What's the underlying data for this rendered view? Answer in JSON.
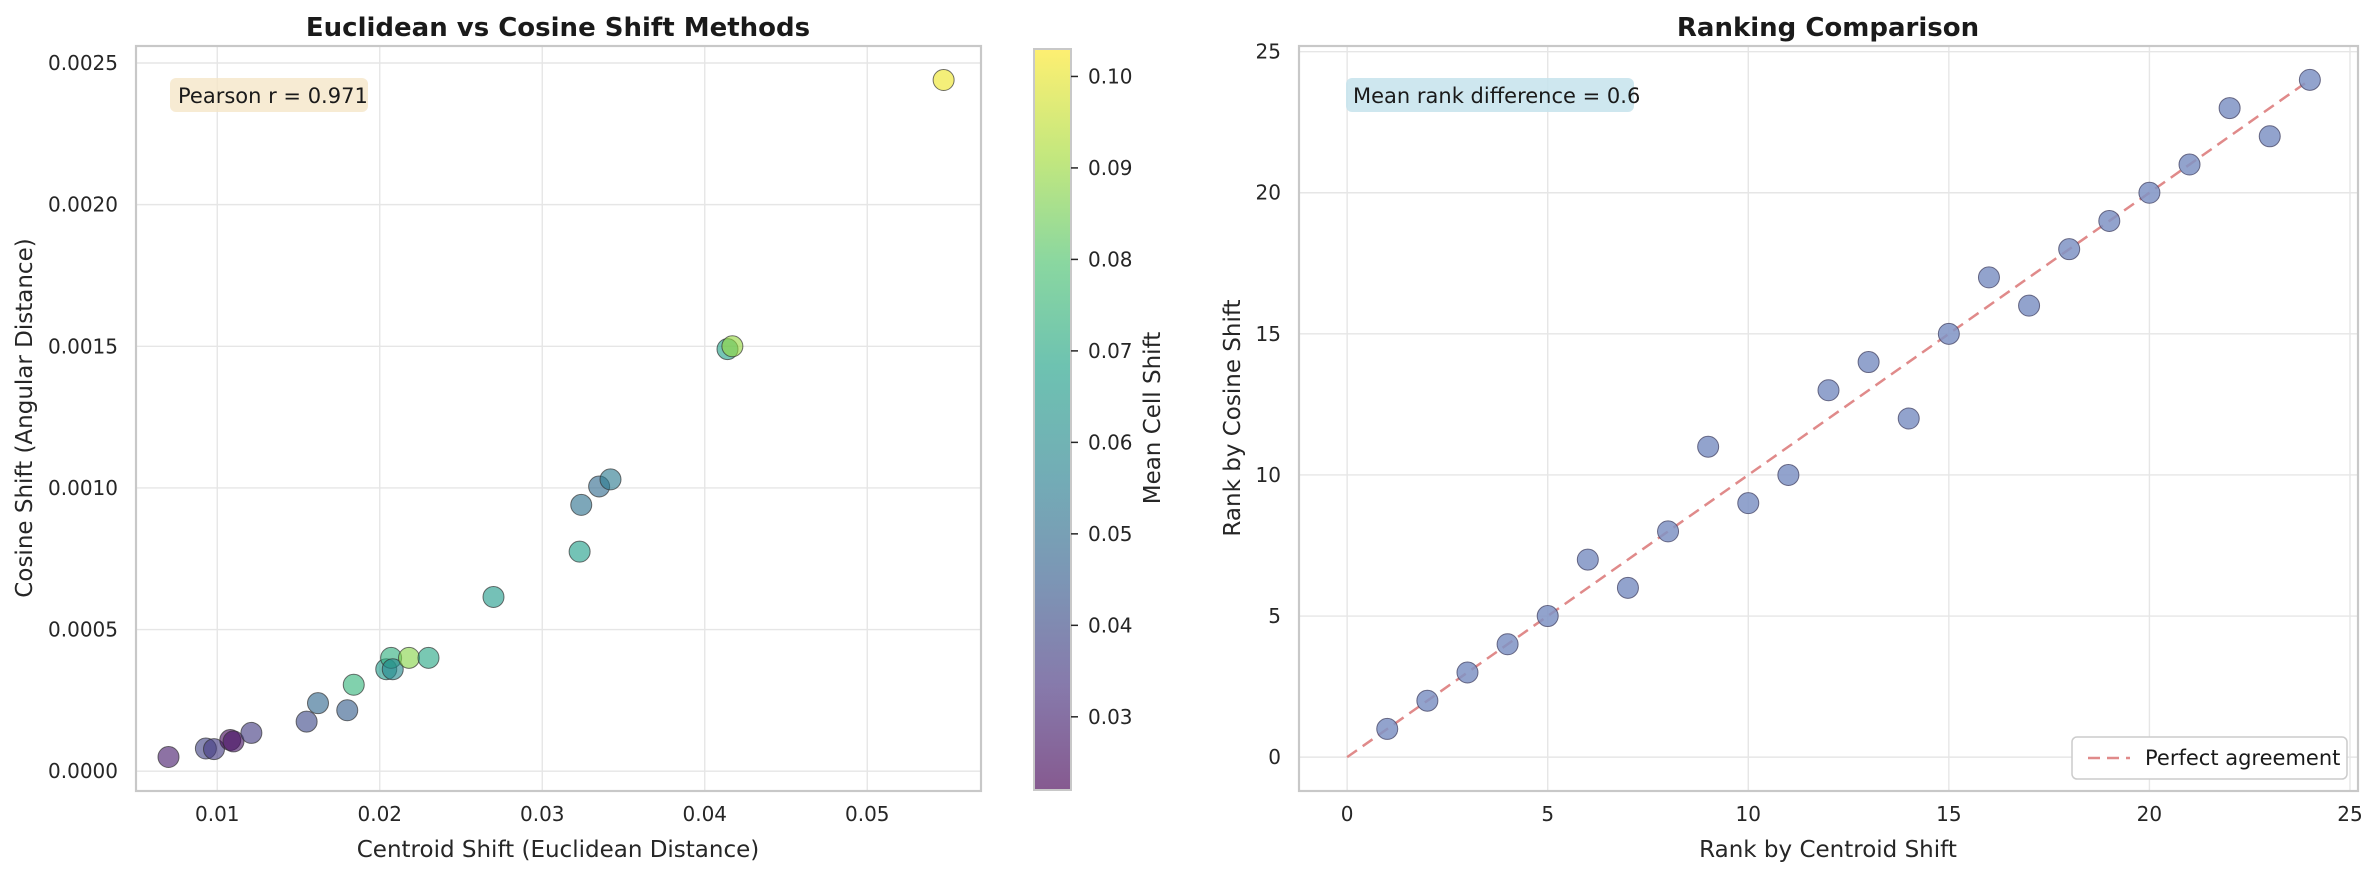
{
  "chart_data": [
    {
      "type": "scatter",
      "title": "Euclidean vs Cosine Shift Methods",
      "xlabel": "Centroid Shift (Euclidean Distance)",
      "ylabel": "Cosine Shift (Angular Distance)",
      "xlim": [
        0.005,
        0.057
      ],
      "ylim": [
        -7e-05,
        0.00256
      ],
      "xticks": [
        0.01,
        0.02,
        0.03,
        0.04,
        0.05
      ],
      "xtick_labels": [
        "0.01",
        "0.02",
        "0.03",
        "0.04",
        "0.05"
      ],
      "yticks": [
        0.0,
        0.0005,
        0.001,
        0.0015,
        0.002,
        0.0025
      ],
      "ytick_labels": [
        "0.0000",
        "0.0005",
        "0.0010",
        "0.0015",
        "0.0020",
        "0.0025"
      ],
      "grid": true,
      "annotation": "Pearson r = 0.971",
      "colorbar": {
        "label": "Mean Cell Shift",
        "colormap": "viridis",
        "range": [
          0.022,
          0.103
        ],
        "ticks": [
          0.03,
          0.04,
          0.05,
          0.06,
          0.07,
          0.08,
          0.09,
          0.1
        ],
        "tick_labels": [
          "0.03",
          "0.04",
          "0.05",
          "0.06",
          "0.07",
          "0.08",
          "0.09",
          "0.10"
        ]
      },
      "points": [
        {
          "x": 0.007,
          "y": 5e-05,
          "c": 0.028
        },
        {
          "x": 0.0093,
          "y": 8e-05,
          "c": 0.038
        },
        {
          "x": 0.0098,
          "y": 7.8e-05,
          "c": 0.036
        },
        {
          "x": 0.0108,
          "y": 0.00011,
          "c": 0.024
        },
        {
          "x": 0.011,
          "y": 0.000105,
          "c": 0.026
        },
        {
          "x": 0.0121,
          "y": 0.000135,
          "c": 0.036
        },
        {
          "x": 0.0155,
          "y": 0.000175,
          "c": 0.04
        },
        {
          "x": 0.0162,
          "y": 0.00024,
          "c": 0.049
        },
        {
          "x": 0.018,
          "y": 0.000215,
          "c": 0.046
        },
        {
          "x": 0.0184,
          "y": 0.000305,
          "c": 0.075
        },
        {
          "x": 0.0204,
          "y": 0.00036,
          "c": 0.066
        },
        {
          "x": 0.0207,
          "y": 0.0004,
          "c": 0.073
        },
        {
          "x": 0.0208,
          "y": 0.00036,
          "c": 0.06
        },
        {
          "x": 0.0218,
          "y": 0.0004,
          "c": 0.088
        },
        {
          "x": 0.023,
          "y": 0.0004,
          "c": 0.07
        },
        {
          "x": 0.027,
          "y": 0.000615,
          "c": 0.066
        },
        {
          "x": 0.0323,
          "y": 0.000775,
          "c": 0.067
        },
        {
          "x": 0.0324,
          "y": 0.00094,
          "c": 0.052
        },
        {
          "x": 0.0335,
          "y": 0.001005,
          "c": 0.05
        },
        {
          "x": 0.0342,
          "y": 0.00103,
          "c": 0.055
        },
        {
          "x": 0.0414,
          "y": 0.00149,
          "c": 0.068
        },
        {
          "x": 0.0417,
          "y": 0.0015,
          "c": 0.09
        },
        {
          "x": 0.0547,
          "y": 0.00244,
          "c": 0.101
        }
      ]
    },
    {
      "type": "scatter",
      "title": "Ranking Comparison",
      "xlabel": "Rank by Centroid Shift",
      "ylabel": "Rank by Cosine Shift",
      "xlim": [
        -1.2,
        25.2
      ],
      "ylim": [
        -1.2,
        25.2
      ],
      "xticks": [
        0,
        5,
        10,
        15,
        20,
        25
      ],
      "xtick_labels": [
        "0",
        "5",
        "10",
        "15",
        "20",
        "25"
      ],
      "yticks": [
        0,
        5,
        10,
        15,
        20,
        25
      ],
      "ytick_labels": [
        "0",
        "5",
        "10",
        "15",
        "20",
        "25"
      ],
      "grid": true,
      "annotation": "Mean rank difference = 0.6",
      "legend": {
        "placement": "lower-right",
        "label": "Perfect agreement"
      },
      "reference_line": {
        "from": [
          0,
          0
        ],
        "to": [
          24,
          24
        ],
        "style": "dashed",
        "color": "#e08a8a"
      },
      "point_color": "#7f93c4",
      "x": [
        1,
        2,
        3,
        4,
        5,
        6,
        7,
        8,
        9,
        10,
        11,
        12,
        13,
        14,
        15,
        16,
        17,
        18,
        19,
        20,
        21,
        22,
        23,
        24
      ],
      "y": [
        1,
        2,
        3,
        4,
        5,
        7,
        6,
        8,
        11,
        9,
        10,
        13,
        14,
        12,
        15,
        17,
        16,
        18,
        19,
        20,
        21,
        23,
        22,
        24
      ]
    }
  ]
}
